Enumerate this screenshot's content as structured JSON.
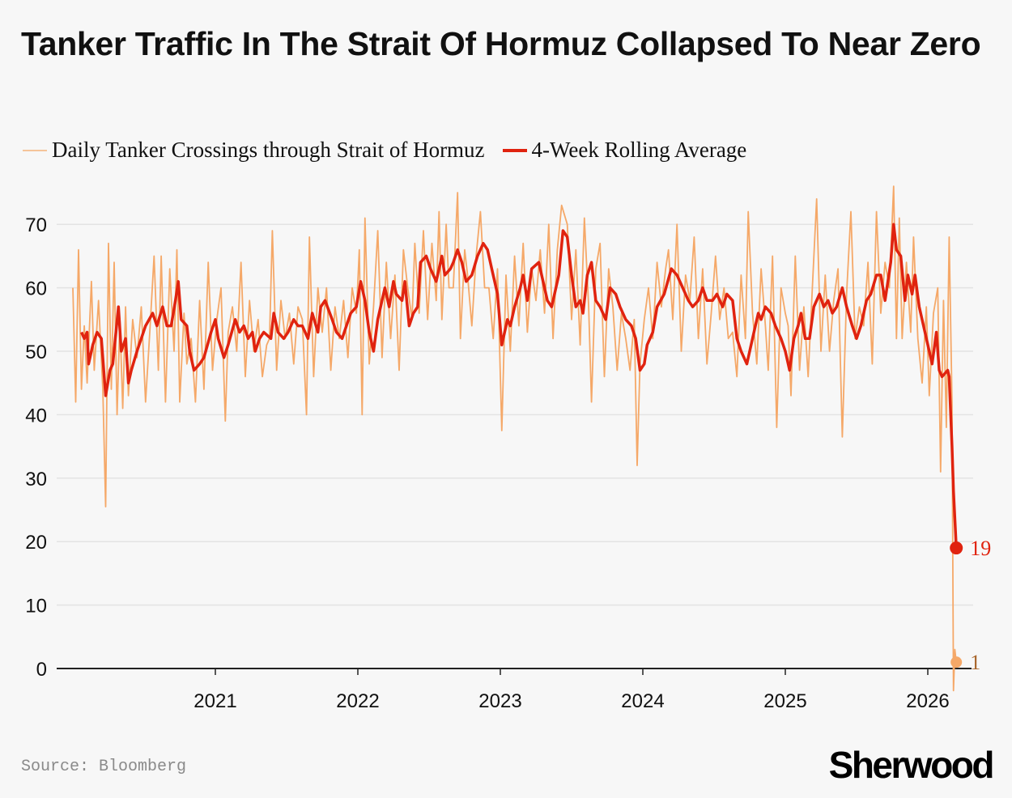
{
  "title": "Tanker Traffic In The Strait Of Hormuz Collapsed To Near Zero",
  "source": "Source: Bloomberg",
  "logo": "Sherwood",
  "chart_data": {
    "type": "line",
    "title": "Tanker Traffic In The Strait Of Hormuz Collapsed To Near Zero",
    "xlabel": "",
    "ylabel": "",
    "ylim": [
      0,
      70
    ],
    "xlim": [
      2020.0,
      2026.3
    ],
    "y_ticks": [
      "0",
      "10",
      "20",
      "30",
      "40",
      "50",
      "60",
      "70"
    ],
    "x_ticks": [
      "2021",
      "2022",
      "2023",
      "2024",
      "2025",
      "2026"
    ],
    "grid": "horizontal",
    "legend_position": "top-left",
    "colors": {
      "daily": "#f5a868",
      "rolling": "#e0230f",
      "daily_label": "#a8662c",
      "axis": "#222222",
      "grid": "#e3e3e3"
    },
    "end_labels": {
      "rolling": "19",
      "daily": "1"
    },
    "series": [
      {
        "name": "Daily Tanker Crossings through Strait of Hormuz",
        "x": [
          2020.0,
          2020.02,
          2020.04,
          2020.06,
          2020.08,
          2020.1,
          2020.13,
          2020.15,
          2020.18,
          2020.21,
          2020.23,
          2020.25,
          2020.27,
          2020.29,
          2020.31,
          2020.33,
          2020.35,
          2020.37,
          2020.39,
          2020.42,
          2020.45,
          2020.48,
          2020.51,
          2020.54,
          2020.57,
          2020.6,
          2020.62,
          2020.65,
          2020.68,
          2020.71,
          2020.73,
          2020.75,
          2020.78,
          2020.8,
          2020.83,
          2020.86,
          2020.89,
          2020.92,
          2020.95,
          2020.98,
          2021.01,
          2021.04,
          2021.07,
          2021.09,
          2021.12,
          2021.15,
          2021.18,
          2021.21,
          2021.24,
          2021.27,
          2021.3,
          2021.33,
          2021.36,
          2021.38,
          2021.4,
          2021.43,
          2021.46,
          2021.49,
          2021.52,
          2021.55,
          2021.58,
          2021.61,
          2021.64,
          2021.66,
          2021.69,
          2021.72,
          2021.75,
          2021.78,
          2021.81,
          2021.84,
          2021.87,
          2021.9,
          2021.93,
          2021.96,
          2021.99,
          2022.01,
          2022.03,
          2022.05,
          2022.08,
          2022.11,
          2022.14,
          2022.17,
          2022.2,
          2022.23,
          2022.26,
          2022.29,
          2022.32,
          2022.35,
          2022.38,
          2022.4,
          2022.43,
          2022.46,
          2022.49,
          2022.52,
          2022.55,
          2022.57,
          2022.59,
          2022.62,
          2022.64,
          2022.67,
          2022.7,
          2022.72,
          2022.75,
          2022.77,
          2022.8,
          2022.83,
          2022.86,
          2022.89,
          2022.92,
          2022.95,
          2022.98,
          2023.01,
          2023.04,
          2023.07,
          2023.1,
          2023.13,
          2023.16,
          2023.19,
          2023.22,
          2023.25,
          2023.28,
          2023.31,
          2023.34,
          2023.37,
          2023.4,
          2023.43,
          2023.47,
          2023.5,
          2023.53,
          2023.56,
          2023.59,
          2023.62,
          2023.64,
          2023.67,
          2023.7,
          2023.73,
          2023.76,
          2023.79,
          2023.82,
          2023.85,
          2023.88,
          2023.91,
          2023.94,
          2023.96,
          2023.98,
          2024.01,
          2024.04,
          2024.07,
          2024.1,
          2024.13,
          2024.16,
          2024.18,
          2024.21,
          2024.24,
          2024.27,
          2024.3,
          2024.33,
          2024.36,
          2024.39,
          2024.42,
          2024.45,
          2024.48,
          2024.51,
          2024.54,
          2024.57,
          2024.6,
          2024.63,
          2024.66,
          2024.69,
          2024.72,
          2024.74,
          2024.77,
          2024.8,
          2024.83,
          2024.86,
          2024.88,
          2024.91,
          2024.94,
          2024.97,
          2025.0,
          2025.02,
          2025.04,
          2025.07,
          2025.1,
          2025.13,
          2025.16,
          2025.19,
          2025.22,
          2025.25,
          2025.28,
          2025.31,
          2025.34,
          2025.37,
          2025.4,
          2025.43,
          2025.46,
          2025.49,
          2025.52,
          2025.55,
          2025.58,
          2025.61,
          2025.64,
          2025.67,
          2025.7,
          2025.73,
          2025.76,
          2025.78,
          2025.8,
          2025.82,
          2025.85,
          2025.88,
          2025.9,
          2025.93,
          2025.96,
          2025.99,
          2026.01,
          2026.04,
          2026.07,
          2026.09,
          2026.11,
          2026.13,
          2026.15,
          2026.17,
          2026.18,
          2026.19,
          2026.2
        ],
        "values": [
          60,
          42,
          66,
          44,
          54,
          45,
          61,
          47,
          58,
          44,
          25.5,
          67,
          44,
          64,
          40,
          55,
          41,
          57,
          43,
          55,
          49,
          57,
          42,
          53,
          65,
          47,
          65,
          42,
          63,
          50,
          66,
          42,
          56,
          48,
          52,
          42,
          58,
          44,
          64,
          47,
          55,
          60,
          39,
          53,
          57,
          50,
          64,
          46,
          58,
          50,
          55,
          46,
          51,
          52,
          69,
          47,
          58,
          52,
          56,
          48,
          57,
          55,
          40,
          68,
          46,
          60,
          53,
          60,
          47,
          57,
          52,
          58,
          49,
          60,
          56,
          66,
          40,
          71,
          48,
          57,
          69,
          49,
          64,
          52,
          62,
          47,
          66,
          60,
          55,
          67,
          56,
          69,
          55,
          67,
          58,
          72,
          55,
          70,
          60,
          60,
          75,
          52,
          66,
          62,
          54,
          65,
          72,
          60,
          60,
          52,
          63,
          37.5,
          62,
          50,
          65,
          54,
          67,
          53,
          63,
          58,
          66,
          56,
          70,
          52,
          66,
          73,
          70,
          55,
          66,
          51,
          71,
          57,
          42,
          63,
          67,
          46,
          63,
          57,
          47,
          56,
          52,
          47,
          55,
          32,
          48,
          55,
          60,
          52,
          64,
          57,
          63,
          66,
          55,
          70,
          50,
          62,
          58,
          68,
          52,
          63,
          48,
          56,
          65,
          55,
          60,
          52,
          53,
          46,
          62,
          52,
          72,
          56,
          48,
          63,
          54,
          47,
          65,
          38,
          60,
          56,
          54,
          43,
          65,
          47,
          57,
          46,
          60,
          74,
          50,
          62,
          50,
          58,
          63,
          36.5,
          59,
          72,
          52,
          57,
          54,
          64,
          48,
          72,
          56,
          64,
          60,
          76,
          52,
          71,
          52,
          64,
          53,
          68,
          52,
          45,
          57,
          43,
          56,
          60,
          31,
          58,
          38,
          68,
          42,
          -3.5,
          3,
          1
        ]
      },
      {
        "name": "4-Week Rolling Average",
        "x": [
          2020.06,
          2020.08,
          2020.1,
          2020.11,
          2020.14,
          2020.17,
          2020.2,
          2020.23,
          2020.26,
          2020.28,
          2020.32,
          2020.34,
          2020.37,
          2020.39,
          2020.41,
          2020.45,
          2020.48,
          2020.51,
          2020.56,
          2020.59,
          2020.63,
          2020.66,
          2020.69,
          2020.72,
          2020.74,
          2020.76,
          2020.8,
          2020.82,
          2020.85,
          2020.89,
          2020.92,
          2020.97,
          2021.0,
          2021.02,
          2021.06,
          2021.09,
          2021.14,
          2021.17,
          2021.2,
          2021.23,
          2021.26,
          2021.28,
          2021.31,
          2021.34,
          2021.39,
          2021.41,
          2021.44,
          2021.48,
          2021.51,
          2021.55,
          2021.58,
          2021.61,
          2021.65,
          2021.68,
          2021.72,
          2021.74,
          2021.77,
          2021.82,
          2021.85,
          2021.89,
          2021.92,
          2021.95,
          2021.99,
          2022.02,
          2022.05,
          2022.08,
          2022.11,
          2022.14,
          2022.17,
          2022.19,
          2022.22,
          2022.25,
          2022.27,
          2022.31,
          2022.33,
          2022.36,
          2022.39,
          2022.42,
          2022.44,
          2022.48,
          2022.51,
          2022.55,
          2022.59,
          2022.61,
          2022.65,
          2022.67,
          2022.7,
          2022.73,
          2022.76,
          2022.8,
          2022.84,
          2022.88,
          2022.91,
          2022.94,
          2022.98,
          2023.01,
          2023.05,
          2023.07,
          2023.1,
          2023.14,
          2023.16,
          2023.19,
          2023.22,
          2023.27,
          2023.3,
          2023.33,
          2023.36,
          2023.41,
          2023.44,
          2023.47,
          2023.5,
          2023.53,
          2023.56,
          2023.58,
          2023.61,
          2023.64,
          2023.67,
          2023.7,
          2023.74,
          2023.77,
          2023.81,
          2023.84,
          2023.88,
          2023.92,
          2023.95,
          2023.98,
          2024.01,
          2024.03,
          2024.07,
          2024.1,
          2024.15,
          2024.2,
          2024.24,
          2024.28,
          2024.32,
          2024.35,
          2024.39,
          2024.42,
          2024.45,
          2024.49,
          2024.52,
          2024.56,
          2024.59,
          2024.63,
          2024.66,
          2024.69,
          2024.73,
          2024.77,
          2024.81,
          2024.83,
          2024.86,
          2024.9,
          2024.93,
          2024.97,
          2025.0,
          2025.03,
          2025.06,
          2025.09,
          2025.11,
          2025.14,
          2025.17,
          2025.2,
          2025.24,
          2025.27,
          2025.3,
          2025.33,
          2025.36,
          2025.4,
          2025.43,
          2025.47,
          2025.5,
          2025.53,
          2025.57,
          2025.6,
          2025.64,
          2025.67,
          2025.7,
          2025.74,
          2025.76,
          2025.78,
          2025.81,
          2025.84,
          2025.86,
          2025.89,
          2025.91,
          2025.94,
          2025.98,
          2026.01,
          2026.03,
          2026.06,
          2026.08,
          2026.1,
          2026.14,
          2026.15,
          2026.17,
          2026.18,
          2026.2
        ],
        "values": [
          53,
          52,
          53,
          48,
          51,
          53,
          52,
          43,
          47,
          48,
          57,
          50,
          52,
          45,
          47,
          50,
          52,
          54,
          56,
          54,
          57,
          54,
          54,
          58,
          61,
          55,
          54,
          50,
          47,
          48,
          49,
          53,
          55,
          52,
          49,
          51,
          55,
          53,
          54,
          52,
          53,
          50,
          52,
          53,
          52,
          56,
          53,
          52,
          53,
          55,
          54,
          54,
          52,
          56,
          53,
          57,
          58,
          55,
          53,
          52,
          54,
          56,
          57,
          61,
          58,
          53,
          50,
          55,
          58,
          60,
          57,
          61,
          59,
          58,
          61,
          54,
          56,
          57,
          64,
          65,
          63,
          61,
          65,
          62,
          63,
          64,
          66,
          64,
          61,
          62,
          65,
          67,
          66,
          63,
          59,
          51,
          55,
          54,
          57,
          60,
          62,
          58,
          63,
          64,
          61,
          58,
          57,
          62,
          69,
          68,
          62,
          57,
          58,
          56,
          62,
          64,
          58,
          57,
          55,
          60,
          59,
          57,
          55,
          54,
          52,
          47,
          48,
          51,
          53,
          57,
          59,
          63,
          62,
          60,
          58,
          57,
          58,
          60,
          58,
          58,
          59,
          57,
          59,
          58,
          52,
          50,
          48,
          52,
          56,
          55,
          57,
          56,
          54,
          52,
          50,
          47,
          52,
          54,
          56,
          52,
          52,
          57,
          59,
          57,
          58,
          56,
          57,
          60,
          57,
          54,
          52,
          54,
          58,
          59,
          62,
          62,
          58,
          64,
          70,
          66,
          65,
          58,
          62,
          59,
          62,
          57,
          53,
          50,
          48,
          53,
          47,
          46,
          47,
          46,
          35,
          28,
          19
        ]
      }
    ]
  }
}
